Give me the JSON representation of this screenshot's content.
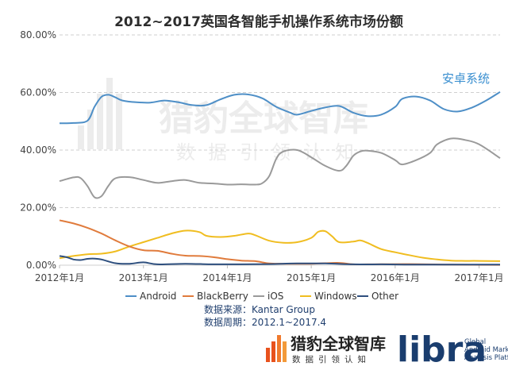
{
  "chart_data": {
    "type": "line",
    "title": "2012~2017英国各智能手机操作系统市场份额",
    "ylim": [
      0,
      80
    ],
    "y_ticks": [
      "0.00%",
      "20.00%",
      "40.00%",
      "60.00%",
      "80.00%"
    ],
    "x_ticks": [
      "2012年1月",
      "2013年1月",
      "2014年1月",
      "2015年1月",
      "2016年1月",
      "2017年1月"
    ],
    "x_range_months": [
      0,
      63
    ],
    "grid": true,
    "legend_position": "bottom",
    "series": [
      {
        "name": "Android",
        "color": "#4e8fc7",
        "points": [
          [
            0,
            49.3
          ],
          [
            2,
            49.4
          ],
          [
            4,
            50.2
          ],
          [
            5,
            55
          ],
          [
            6,
            58.5
          ],
          [
            7,
            59.2
          ],
          [
            8,
            58.3
          ],
          [
            9,
            57.2
          ],
          [
            11,
            56.6
          ],
          [
            13,
            56.5
          ],
          [
            15,
            57.2
          ],
          [
            17,
            56.6
          ],
          [
            19,
            55.6
          ],
          [
            21,
            55.6
          ],
          [
            23,
            57.6
          ],
          [
            25,
            59.2
          ],
          [
            27,
            59.3
          ],
          [
            29,
            58.0
          ],
          [
            31,
            55.0
          ],
          [
            33,
            53.0
          ],
          [
            34,
            52.3
          ],
          [
            36,
            53.6
          ],
          [
            38,
            54.8
          ],
          [
            40,
            55.3
          ],
          [
            42,
            53.0
          ],
          [
            44,
            51.8
          ],
          [
            46,
            52.3
          ],
          [
            48,
            55.0
          ],
          [
            49,
            57.8
          ],
          [
            51,
            58.6
          ],
          [
            53,
            57.2
          ],
          [
            55,
            54.2
          ],
          [
            57,
            53.4
          ],
          [
            59,
            54.8
          ],
          [
            61,
            57.2
          ],
          [
            63,
            60.2
          ]
        ]
      },
      {
        "name": "BlackBerry",
        "color": "#e07b3c",
        "points": [
          [
            0,
            15.6
          ],
          [
            2,
            14.5
          ],
          [
            4,
            13.0
          ],
          [
            6,
            11.0
          ],
          [
            8,
            8.6
          ],
          [
            10,
            6.5
          ],
          [
            12,
            5.2
          ],
          [
            14,
            5.0
          ],
          [
            16,
            4.0
          ],
          [
            18,
            3.3
          ],
          [
            20,
            3.2
          ],
          [
            22,
            2.8
          ],
          [
            24,
            2.1
          ],
          [
            26,
            1.6
          ],
          [
            28,
            1.4
          ],
          [
            30,
            0.6
          ],
          [
            32,
            0.5
          ],
          [
            34,
            0.5
          ],
          [
            36,
            0.5
          ],
          [
            38,
            0.7
          ],
          [
            40,
            0.8
          ],
          [
            42,
            0.3
          ],
          [
            44,
            0.3
          ],
          [
            50,
            0.4
          ],
          [
            56,
            0.2
          ],
          [
            63,
            0.1
          ]
        ]
      },
      {
        "name": "iOS",
        "color": "#9a9a9a",
        "points": [
          [
            0,
            29.2
          ],
          [
            2,
            30.5
          ],
          [
            3,
            30.3
          ],
          [
            4,
            27.5
          ],
          [
            5,
            23.6
          ],
          [
            6,
            24.0
          ],
          [
            7,
            27.6
          ],
          [
            8,
            30.2
          ],
          [
            10,
            30.6
          ],
          [
            12,
            29.6
          ],
          [
            14,
            28.6
          ],
          [
            16,
            29.2
          ],
          [
            18,
            29.6
          ],
          [
            20,
            28.6
          ],
          [
            22,
            28.4
          ],
          [
            24,
            28.0
          ],
          [
            26,
            28.1
          ],
          [
            28,
            28.0
          ],
          [
            29,
            28.5
          ],
          [
            30,
            31.0
          ],
          [
            31,
            37.0
          ],
          [
            32,
            39.5
          ],
          [
            34,
            40.0
          ],
          [
            36,
            37.5
          ],
          [
            38,
            34.5
          ],
          [
            40,
            32.8
          ],
          [
            41,
            34.5
          ],
          [
            42,
            38.0
          ],
          [
            43,
            39.5
          ],
          [
            44,
            39.8
          ],
          [
            46,
            39.0
          ],
          [
            48,
            36.5
          ],
          [
            49,
            35.0
          ],
          [
            51,
            36.5
          ],
          [
            53,
            39.0
          ],
          [
            54,
            42.0
          ],
          [
            56,
            44.0
          ],
          [
            58,
            43.5
          ],
          [
            60,
            42.0
          ],
          [
            63,
            37.2
          ]
        ]
      },
      {
        "name": "Windows",
        "color": "#f0bd20",
        "points": [
          [
            0,
            2.4
          ],
          [
            2,
            3.2
          ],
          [
            4,
            3.8
          ],
          [
            6,
            4.0
          ],
          [
            8,
            4.8
          ],
          [
            10,
            6.5
          ],
          [
            12,
            8.0
          ],
          [
            14,
            9.5
          ],
          [
            16,
            11.0
          ],
          [
            18,
            12.0
          ],
          [
            20,
            11.5
          ],
          [
            21,
            10.2
          ],
          [
            23,
            9.8
          ],
          [
            25,
            10.2
          ],
          [
            27,
            11.0
          ],
          [
            28,
            10.4
          ],
          [
            30,
            8.5
          ],
          [
            32,
            7.8
          ],
          [
            34,
            8.0
          ],
          [
            36,
            9.5
          ],
          [
            37,
            11.6
          ],
          [
            38,
            11.8
          ],
          [
            39,
            10.0
          ],
          [
            40,
            8.0
          ],
          [
            42,
            8.2
          ],
          [
            43,
            8.6
          ],
          [
            44,
            7.8
          ],
          [
            46,
            5.6
          ],
          [
            48,
            4.5
          ],
          [
            50,
            3.5
          ],
          [
            52,
            2.6
          ],
          [
            54,
            2.0
          ],
          [
            56,
            1.6
          ],
          [
            58,
            1.5
          ],
          [
            60,
            1.5
          ],
          [
            63,
            1.4
          ]
        ]
      },
      {
        "name": "Other",
        "color": "#2e4f7e",
        "points": [
          [
            0,
            3.2
          ],
          [
            1,
            2.8
          ],
          [
            2,
            2.0
          ],
          [
            3,
            1.8
          ],
          [
            4,
            2.2
          ],
          [
            5,
            2.3
          ],
          [
            6,
            2.0
          ],
          [
            8,
            0.7
          ],
          [
            10,
            0.5
          ],
          [
            12,
            1.0
          ],
          [
            14,
            0.3
          ],
          [
            18,
            0.5
          ],
          [
            22,
            0.3
          ],
          [
            26,
            0.3
          ],
          [
            30,
            0.4
          ],
          [
            34,
            0.6
          ],
          [
            38,
            0.6
          ],
          [
            42,
            0.3
          ],
          [
            46,
            0.3
          ],
          [
            50,
            0.2
          ],
          [
            56,
            0.2
          ],
          [
            63,
            0.2
          ]
        ]
      }
    ],
    "annotation": "安卓系统"
  },
  "source_lines": [
    "数据来源：Kantar Group",
    "数据周期：2012.1~2017.4"
  ],
  "watermark": {
    "main": "猎豹全球智库",
    "sub": "数据引领认知"
  },
  "footer": {
    "logo_cn": "猎豹全球智库",
    "logo_cn_sub": "数据引领认知",
    "libra": "libra",
    "libra_sub": [
      "Global",
      "Android Market",
      "Analysis Platform"
    ]
  }
}
